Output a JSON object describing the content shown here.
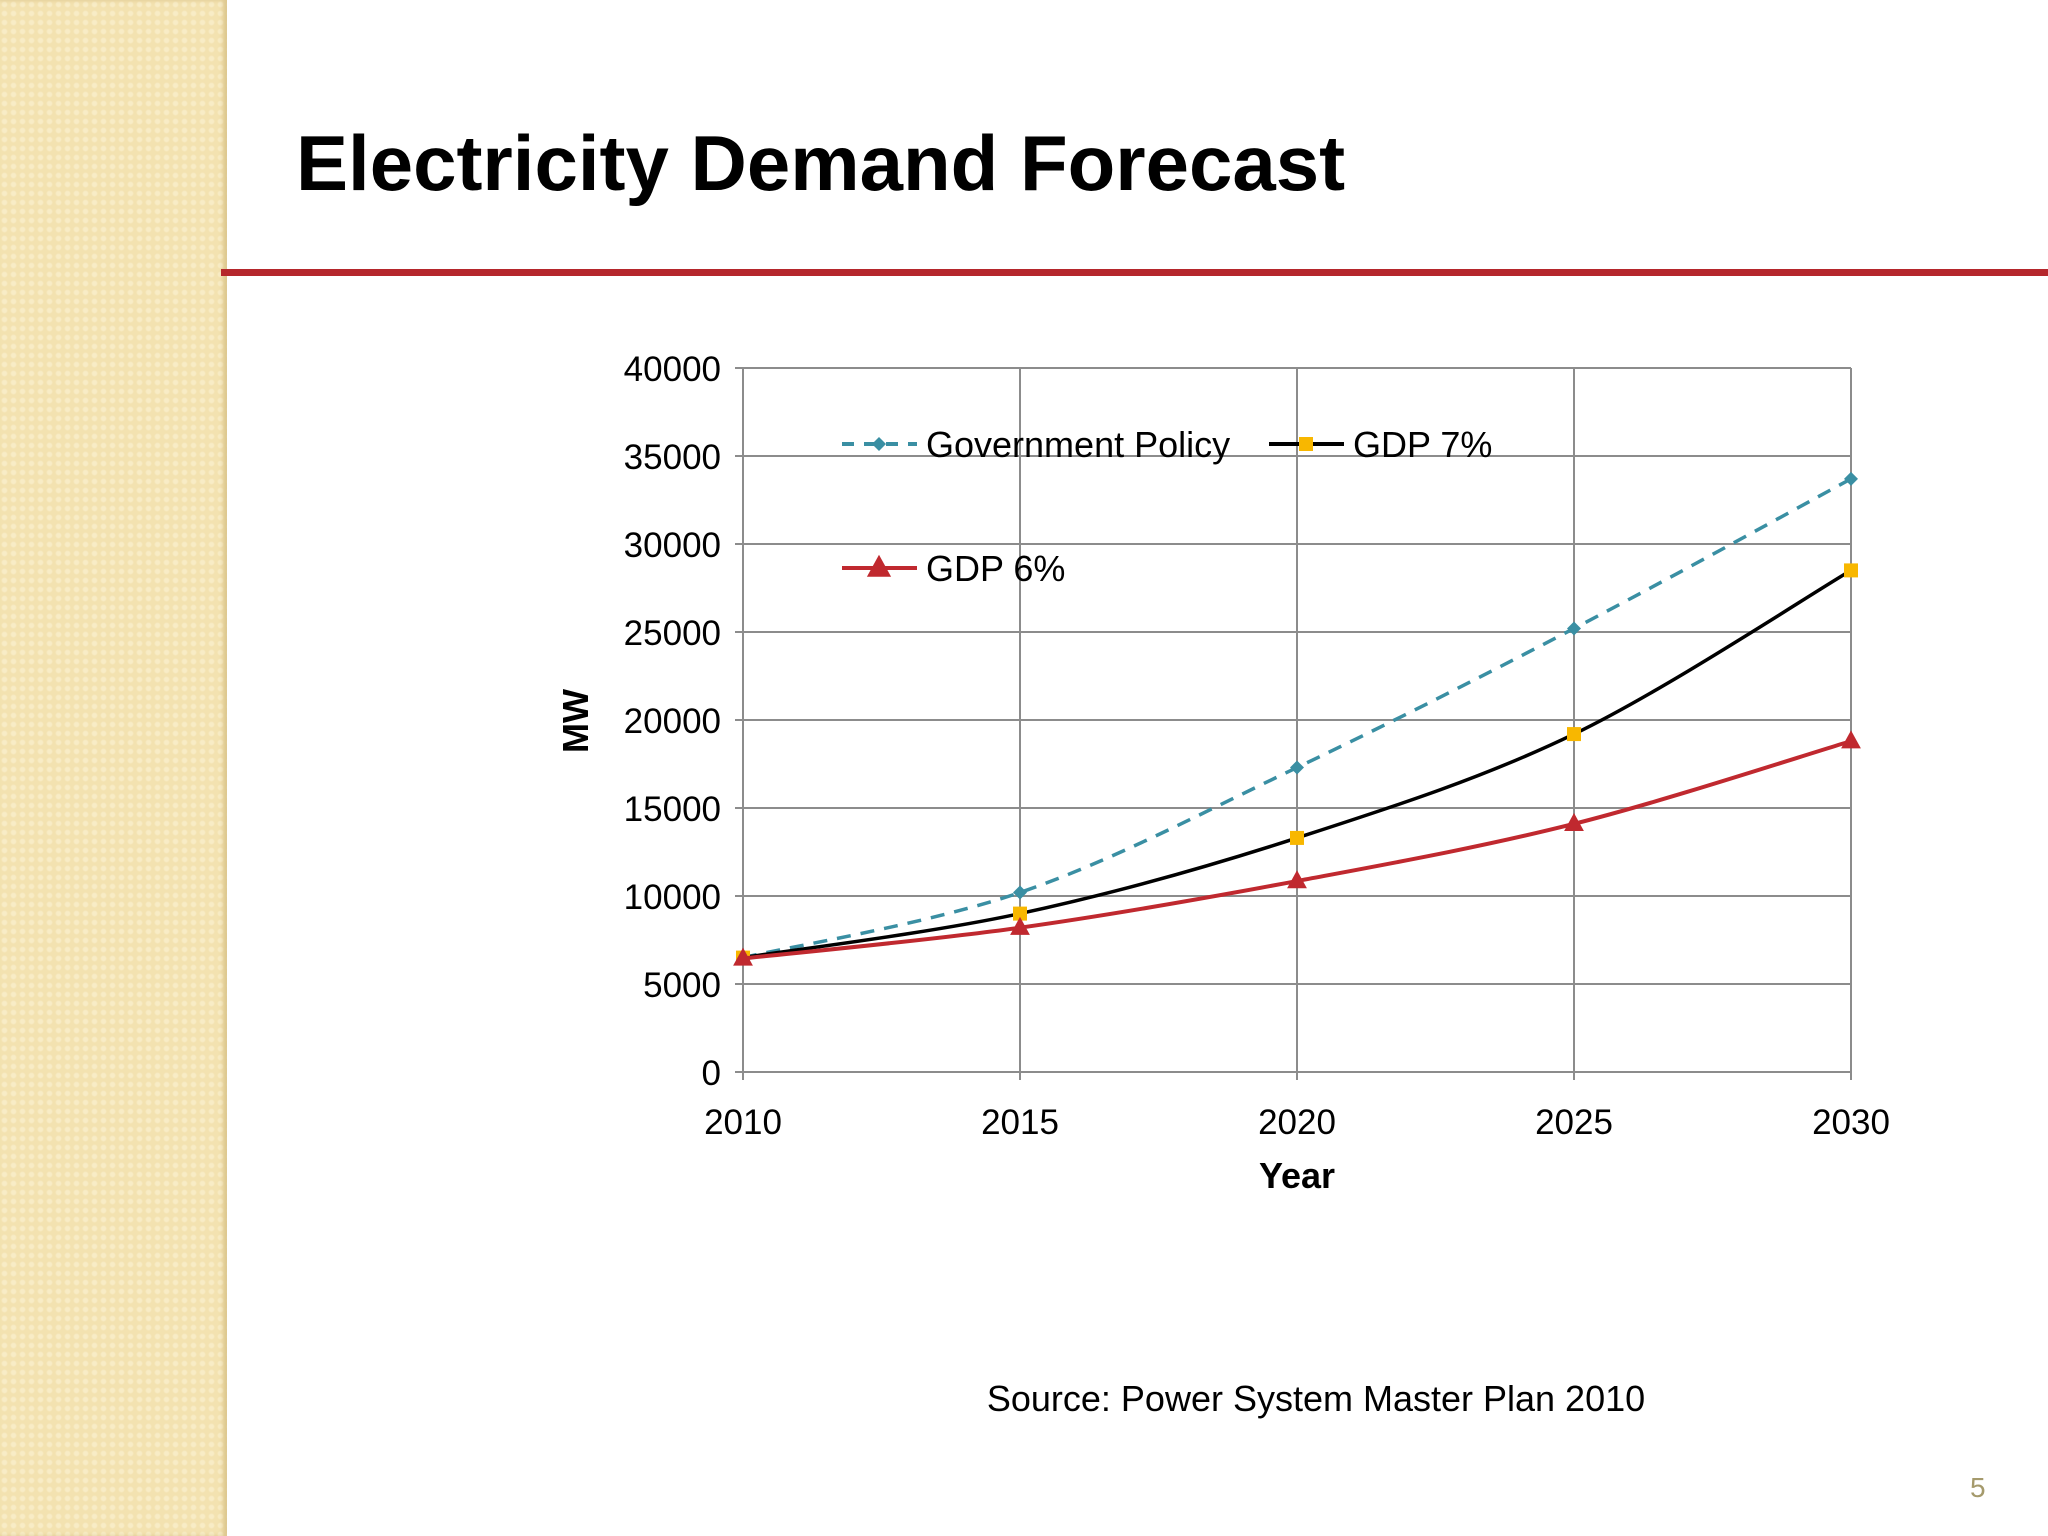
{
  "slide": {
    "title": "Electricity Demand Forecast",
    "source": "Source: Power System Master Plan 2010",
    "page_number": "5",
    "accent_color": "#b5272c"
  },
  "chart_data": {
    "type": "line",
    "title": "",
    "xlabel": "Year",
    "ylabel": "MW",
    "x": [
      2010,
      2015,
      2020,
      2025,
      2030
    ],
    "xticks": [
      "2010",
      "2015",
      "2020",
      "2025",
      "2030"
    ],
    "yticks": [
      "0",
      "5000",
      "10000",
      "15000",
      "20000",
      "25000",
      "30000",
      "35000",
      "40000"
    ],
    "xlim": [
      2010,
      2030
    ],
    "ylim": [
      0,
      40000
    ],
    "grid": true,
    "legend_placement": "top-left",
    "series": [
      {
        "name": "Government Policy",
        "values": [
          6500,
          10200,
          17300,
          25200,
          33700
        ],
        "color": "#3a8fa3",
        "dash": true,
        "marker": "diamond"
      },
      {
        "name": "GDP 7%",
        "values": [
          6500,
          9000,
          13300,
          19200,
          28500
        ],
        "color": "#000000",
        "marker_color": "#f8b700",
        "dash": false,
        "marker": "square"
      },
      {
        "name": "GDP 6%",
        "values": [
          6450,
          8200,
          10850,
          14100,
          18800
        ],
        "color": "#c0292f",
        "dash": false,
        "marker": "triangle"
      }
    ]
  }
}
